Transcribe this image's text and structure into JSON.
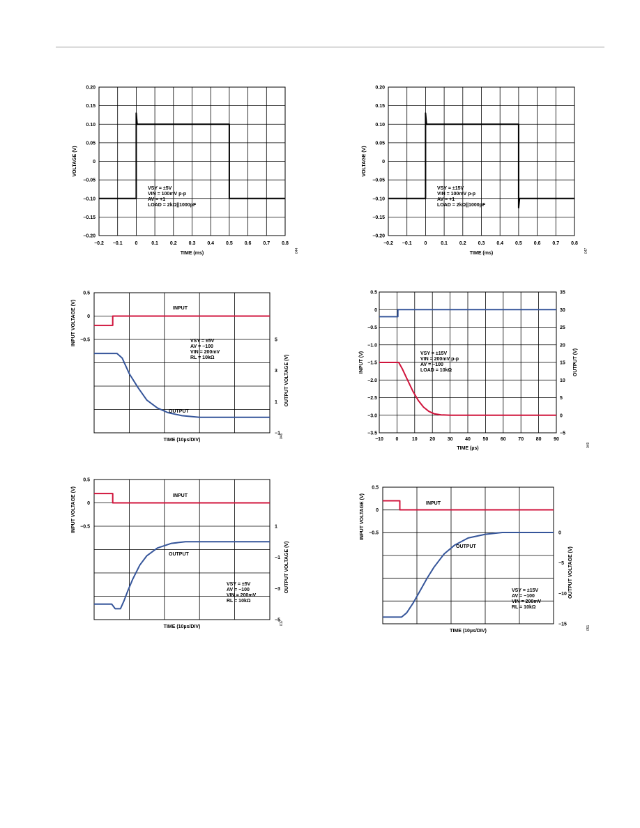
{
  "page": {
    "background": "#ffffff",
    "rule_color": "#9a9a9a"
  },
  "chart_data": [
    {
      "type": "line",
      "figure_code": "044",
      "xlabel": "TIME (ms)",
      "ylabel": "VOLTAGE (V)",
      "xlim": [
        -0.2,
        0.8
      ],
      "ylim": [
        -0.2,
        0.2
      ],
      "x_ticks": [
        "−0.2",
        "−0.1",
        "0",
        "0.1",
        "0.2",
        "0.3",
        "0.4",
        "0.5",
        "0.6",
        "0.7",
        "0.8"
      ],
      "y_ticks": [
        "0.20",
        "0.15",
        "0.10",
        "0.05",
        "0",
        "−0.05",
        "−0.10",
        "−0.15",
        "−0.20"
      ],
      "grid": true,
      "annotation": [
        "VSY = ±5V",
        "VIN = 100mV p-p",
        "AV = +1",
        "LOAD = 2kΩ||1000pF"
      ],
      "series": [
        {
          "color": "#000000",
          "x": [
            -0.2,
            0,
            0,
            0.005,
            0.5,
            0.5,
            0.505,
            0.8
          ],
          "y": [
            -0.1,
            -0.1,
            0.13,
            0.1,
            0.1,
            -0.1,
            -0.1,
            -0.1
          ]
        }
      ]
    },
    {
      "type": "line",
      "figure_code": "047",
      "xlabel": "TIME (ms)",
      "ylabel": "VOLTAGE (V)",
      "xlim": [
        -0.2,
        0.8
      ],
      "ylim": [
        -0.2,
        0.2
      ],
      "x_ticks": [
        "−0.2",
        "−0.1",
        "0",
        "0.1",
        "0.2",
        "0.3",
        "0.4",
        "0.5",
        "0.6",
        "0.7",
        "0.8"
      ],
      "y_ticks": [
        "0.20",
        "0.15",
        "0.10",
        "0.05",
        "0",
        "−0.05",
        "−0.10",
        "−0.15",
        "−0.20"
      ],
      "grid": true,
      "annotation": [
        "VSY = ±15V",
        "VIN = 100mV p-p",
        "AV = +1",
        "LOAD = 2kΩ||1000pF"
      ],
      "series": [
        {
          "color": "#000000",
          "x": [
            -0.2,
            0,
            0,
            0.005,
            0.5,
            0.5,
            0.505,
            0.8
          ],
          "y": [
            -0.1,
            -0.1,
            0.13,
            0.1,
            0.1,
            -0.125,
            -0.1,
            -0.1
          ]
        }
      ]
    },
    {
      "type": "line",
      "figure_code": "046",
      "xlabel": "TIME (10µs/DIV)",
      "ylabel": "INPUT VOLTAGE (V)",
      "y2label": "OUTPUT VOLTAGE (V)",
      "x_divisions": 5,
      "input_ticks": [
        "0.5",
        "0",
        "−0.5"
      ],
      "output_ticks": [
        "5",
        "3",
        "1",
        "−1"
      ],
      "grid": true,
      "labels": {
        "input": "INPUT",
        "output": "OUTPUT"
      },
      "annotation": [
        "VSY = ±5V",
        "AV = −100",
        "VIN = 200mV",
        "RL = 10kΩ"
      ],
      "series": [
        {
          "name": "INPUT",
          "color": "#d0143c",
          "x": [
            0,
            5.3,
            5.3,
            50
          ],
          "y": [
            -0.2,
            -0.2,
            0,
            0
          ]
        },
        {
          "name": "OUTPUT",
          "color": "#35559a",
          "x": [
            0,
            6.5,
            8,
            10,
            12.5,
            15,
            18,
            21,
            25,
            30,
            35,
            50
          ],
          "y": [
            4.1,
            4.1,
            3.8,
            2.8,
            1.9,
            1.1,
            0.6,
            0.3,
            0.1,
            0,
            0,
            0
          ]
        }
      ]
    },
    {
      "type": "line",
      "figure_code": "049",
      "xlabel": "TIME (µs)",
      "ylabel": "INPUT (V)",
      "y2label": "OUTPUT (V)",
      "xlim": [
        -10,
        90
      ],
      "ylim": [
        -3.5,
        0.5
      ],
      "y2lim": [
        -5,
        35
      ],
      "x_ticks": [
        "−10",
        "0",
        "10",
        "20",
        "30",
        "40",
        "50",
        "60",
        "70",
        "80",
        "90"
      ],
      "y_ticks": [
        "0.5",
        "0",
        "−0.5",
        "−1.0",
        "−1.5",
        "−2.0",
        "−2.5",
        "−3.0",
        "−3.5"
      ],
      "y2_ticks": [
        "35",
        "30",
        "25",
        "20",
        "15",
        "10",
        "5",
        "0",
        "−5"
      ],
      "grid": true,
      "annotation": [
        "VSY = ±15V",
        "VIN = 200mV p-p",
        "AV = −100",
        "LOAD = 10kΩ"
      ],
      "series": [
        {
          "name": "INPUT",
          "color": "#35559a",
          "axis": "left",
          "x": [
            -10,
            0.5,
            0.5,
            90
          ],
          "y": [
            -0.2,
            -0.2,
            0,
            0
          ]
        },
        {
          "name": "OUTPUT",
          "color": "#d0143c",
          "axis": "right",
          "x": [
            -10,
            1,
            3,
            6,
            9,
            12,
            15,
            18,
            21,
            25,
            30,
            90
          ],
          "y": [
            15,
            15,
            13.2,
            10,
            6.8,
            4.2,
            2.3,
            1.1,
            0.4,
            0.1,
            0,
            0
          ]
        }
      ]
    },
    {
      "type": "line",
      "figure_code": "017",
      "xlabel": "TIME (10µs/DIV)",
      "ylabel": "INPUT VOLTAGE (V)",
      "y2label": "OUTPUT VOLTAGE (V)",
      "x_divisions": 5,
      "input_ticks": [
        "0.5",
        "0",
        "−0.5"
      ],
      "output_ticks": [
        "1",
        "−1",
        "−3",
        "−5"
      ],
      "grid": true,
      "labels": {
        "input": "INPUT",
        "output": "OUTPUT"
      },
      "annotation": [
        "VSY = ±5V",
        "AV = −100",
        "VIN = 200mV",
        "RL = 10kΩ"
      ],
      "series": [
        {
          "name": "INPUT",
          "color": "#d0143c",
          "x": [
            0,
            5.3,
            5.3,
            50
          ],
          "y": [
            0.2,
            0.2,
            0,
            0
          ]
        },
        {
          "name": "OUTPUT",
          "color": "#35559a",
          "x": [
            0,
            5,
            6,
            7.5,
            8.5,
            9.5,
            11,
            13,
            15,
            18,
            22,
            26,
            30,
            50
          ],
          "y": [
            -4.0,
            -4.0,
            -4.3,
            -4.3,
            -3.8,
            -3.2,
            -2.4,
            -1.5,
            -0.9,
            -0.4,
            -0.1,
            0,
            0,
            0
          ]
        }
      ]
    },
    {
      "type": "line",
      "figure_code": "051",
      "xlabel": "TIME (10µs/DIV)",
      "ylabel": "INPUT VOLTAGE (V)",
      "y2label": "OUTPUT VOLTAGE (V)",
      "x_divisions": 5,
      "input_ticks": [
        "0.5",
        "0",
        "−0.5"
      ],
      "output_ticks": [
        "0",
        "−5",
        "−10",
        "−15"
      ],
      "grid": true,
      "labels": {
        "input": "INPUT",
        "output": "OUTPUT"
      },
      "annotation": [
        "VSY = ±15V",
        "AV = −100",
        "VIN = 200mV",
        "RL = 10kΩ"
      ],
      "series": [
        {
          "name": "INPUT",
          "color": "#d0143c",
          "x": [
            0,
            5,
            5,
            50
          ],
          "y": [
            0.2,
            0.2,
            0,
            0
          ]
        },
        {
          "name": "OUTPUT",
          "color": "#35559a",
          "x": [
            0,
            5.5,
            7,
            9,
            11,
            13,
            15,
            18,
            21,
            25,
            30,
            35,
            50
          ],
          "y": [
            -13.9,
            -13.9,
            -13.2,
            -11.5,
            -9.5,
            -7.5,
            -5.7,
            -3.5,
            -2.1,
            -0.9,
            -0.3,
            0,
            0
          ]
        }
      ]
    }
  ]
}
